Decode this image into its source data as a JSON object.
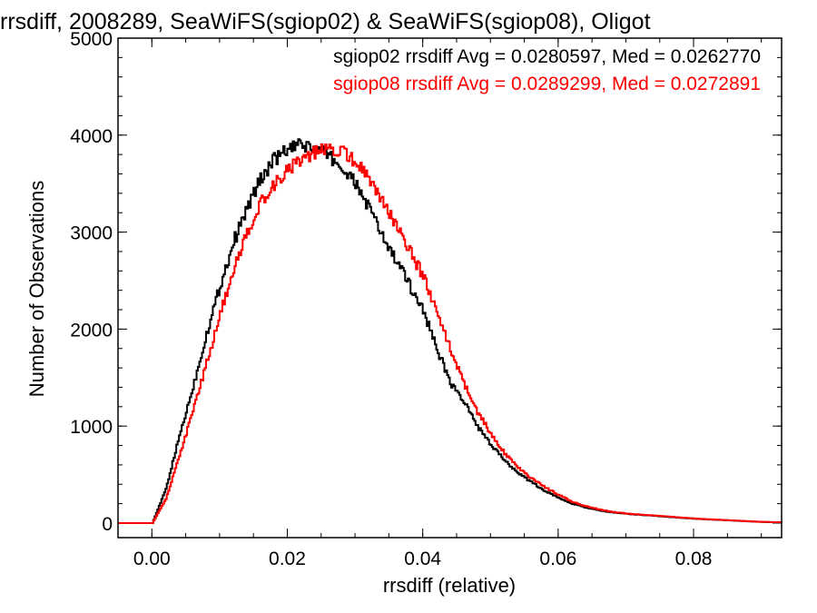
{
  "chart_data": {
    "type": "line",
    "title": "rrsdiff, 2008289, SeaWiFS(sgiop02) & SeaWiFS(sgiop08), Oligot",
    "xlabel": "rrsdiff (relative)",
    "ylabel": "Number of Observations",
    "xlim": [
      -0.005,
      0.093
    ],
    "ylim": [
      -150,
      5000
    ],
    "xticks": [
      0.0,
      0.02,
      0.04,
      0.06,
      0.08
    ],
    "xtick_labels": [
      "0.00",
      "0.02",
      "0.04",
      "0.06",
      "0.08"
    ],
    "yticks": [
      0,
      1000,
      2000,
      3000,
      4000,
      5000
    ],
    "ytick_labels": [
      "0",
      "1000",
      "2000",
      "3000",
      "4000",
      "5000"
    ],
    "grid": false,
    "legend_position": "top-right",
    "annotations": [
      {
        "text": "sgiop02 rrsdiff Avg = 0.0280597, Med = 0.0262770",
        "color": "#000000"
      },
      {
        "text": "sgiop08 rrsdiff Avg = 0.0289299, Med = 0.0272891",
        "color": "#ff0000"
      }
    ],
    "series": [
      {
        "color": "#000000",
        "x": [
          -0.005,
          0.0,
          0.002,
          0.004,
          0.006,
          0.008,
          0.01,
          0.012,
          0.014,
          0.016,
          0.018,
          0.02,
          0.022,
          0.024,
          0.026,
          0.028,
          0.03,
          0.032,
          0.034,
          0.036,
          0.038,
          0.04,
          0.042,
          0.044,
          0.046,
          0.048,
          0.05,
          0.052,
          0.054,
          0.056,
          0.058,
          0.06,
          0.062,
          0.064,
          0.066,
          0.068,
          0.07,
          0.072,
          0.074,
          0.076,
          0.078,
          0.08,
          0.082,
          0.084,
          0.086,
          0.088,
          0.09,
          0.092
        ],
        "y": [
          0,
          0,
          350,
          900,
          1400,
          1950,
          2450,
          2900,
          3250,
          3550,
          3750,
          3850,
          3900,
          3860,
          3800,
          3650,
          3500,
          3250,
          2950,
          2700,
          2450,
          2200,
          1800,
          1450,
          1250,
          1000,
          800,
          650,
          520,
          420,
          330,
          260,
          200,
          160,
          130,
          110,
          95,
          85,
          75,
          65,
          55,
          45,
          38,
          32,
          25,
          18,
          12,
          8
        ]
      },
      {
        "color": "#ff0000",
        "x": [
          -0.005,
          0.0,
          0.002,
          0.004,
          0.006,
          0.008,
          0.01,
          0.012,
          0.014,
          0.016,
          0.018,
          0.02,
          0.022,
          0.024,
          0.026,
          0.028,
          0.03,
          0.032,
          0.034,
          0.036,
          0.038,
          0.04,
          0.042,
          0.044,
          0.046,
          0.048,
          0.05,
          0.052,
          0.054,
          0.056,
          0.058,
          0.06,
          0.062,
          0.064,
          0.066,
          0.068,
          0.07,
          0.072,
          0.074,
          0.076,
          0.078,
          0.08,
          0.082,
          0.084,
          0.086,
          0.088,
          0.09,
          0.092
        ],
        "y": [
          0,
          0,
          250,
          700,
          1150,
          1650,
          2150,
          2600,
          3000,
          3300,
          3500,
          3650,
          3750,
          3820,
          3870,
          3830,
          3720,
          3550,
          3300,
          3050,
          2800,
          2550,
          2200,
          1800,
          1450,
          1150,
          920,
          720,
          570,
          460,
          370,
          290,
          220,
          175,
          140,
          115,
          98,
          88,
          78,
          68,
          58,
          48,
          40,
          33,
          26,
          19,
          13,
          9
        ]
      }
    ]
  }
}
